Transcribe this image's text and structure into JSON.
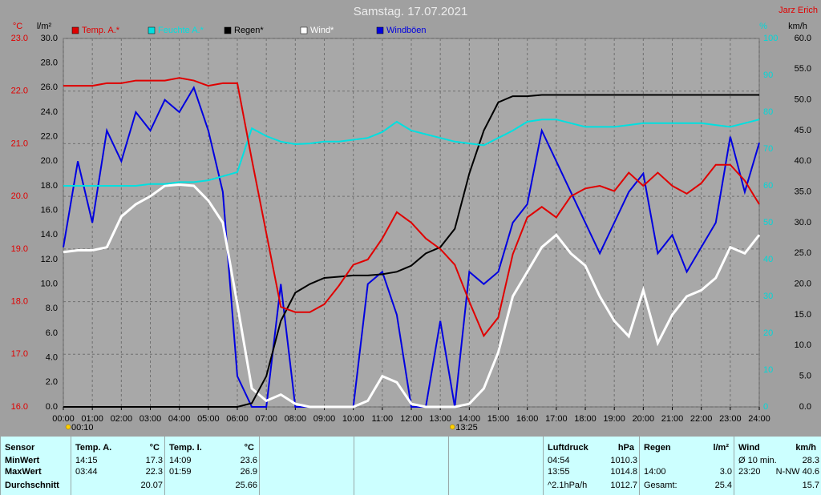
{
  "chart_data": {
    "type": "line",
    "title": "Samstag. 17.07.2021",
    "author": "Jarz Erich",
    "annotations": [
      "00:10",
      "13:25"
    ],
    "grid": true,
    "xlim": [
      0,
      24
    ],
    "xticks": [
      {
        "value": 0,
        "label": "00:00"
      },
      {
        "value": 1,
        "label": "01:00"
      },
      {
        "value": 2,
        "label": "02:00"
      },
      {
        "value": 3,
        "label": "03:00"
      },
      {
        "value": 4,
        "label": "04:00"
      },
      {
        "value": 5,
        "label": "05:00"
      },
      {
        "value": 6,
        "label": "06:00"
      },
      {
        "value": 7,
        "label": "07:00"
      },
      {
        "value": 8,
        "label": "08:00"
      },
      {
        "value": 9,
        "label": "09:00"
      },
      {
        "value": 10,
        "label": "10:00"
      },
      {
        "value": 11,
        "label": "11:00"
      },
      {
        "value": 12,
        "label": "12:00"
      },
      {
        "value": 13,
        "label": "13:00"
      },
      {
        "value": 14,
        "label": "14:00"
      },
      {
        "value": 15,
        "label": "15:00"
      },
      {
        "value": 16,
        "label": "16:00"
      },
      {
        "value": 17,
        "label": "17:00"
      },
      {
        "value": 18,
        "label": "18:00"
      },
      {
        "value": 19,
        "label": "19:00"
      },
      {
        "value": 20,
        "label": "20:00"
      },
      {
        "value": 21,
        "label": "21:00"
      },
      {
        "value": 22,
        "label": "22:00"
      },
      {
        "value": 23,
        "label": "23:00"
      },
      {
        "value": 24,
        "label": "24:00"
      }
    ],
    "axes": {
      "y": {
        "label": "°C",
        "color": "#e00000",
        "lim": [
          16,
          23
        ],
        "ticks": [
          {
            "value": 16,
            "label": "16.0"
          },
          {
            "value": 17,
            "label": "17.0"
          },
          {
            "value": 18,
            "label": "18.0"
          },
          {
            "value": 19,
            "label": "19.0"
          },
          {
            "value": 20,
            "label": "20.0"
          },
          {
            "value": 21,
            "label": "21.0"
          },
          {
            "value": 22,
            "label": "22.0"
          },
          {
            "value": 23,
            "label": "23.0"
          }
        ]
      },
      "y2": {
        "label": "l/m²",
        "color": "#000000",
        "lim": [
          0,
          30
        ],
        "ticks": [
          {
            "value": 0,
            "label": "0.0"
          },
          {
            "value": 2,
            "label": "2.0"
          },
          {
            "value": 4,
            "label": "4.0"
          },
          {
            "value": 6,
            "label": "6.0"
          },
          {
            "value": 8,
            "label": "8.0"
          },
          {
            "value": 10,
            "label": "10.0"
          },
          {
            "value": 12,
            "label": "12.0"
          },
          {
            "value": 14,
            "label": "14.0"
          },
          {
            "value": 16,
            "label": "16.0"
          },
          {
            "value": 18,
            "label": "18.0"
          },
          {
            "value": 20,
            "label": "20.0"
          },
          {
            "value": 22,
            "label": "22.0"
          },
          {
            "value": 24,
            "label": "24.0"
          },
          {
            "value": 26,
            "label": "26.0"
          },
          {
            "value": 28,
            "label": "28.0"
          },
          {
            "value": 30,
            "label": "30.0"
          }
        ]
      },
      "y3": {
        "label": "%",
        "color": "#00d8d8",
        "lim": [
          0,
          100
        ],
        "ticks": [
          0,
          10,
          20,
          30,
          40,
          50,
          60,
          70,
          80,
          90,
          100
        ]
      },
      "y4": {
        "label": "km/h",
        "color": "#000000",
        "lim": [
          0,
          60
        ],
        "ticks": [
          {
            "value": 0,
            "label": "0.0"
          },
          {
            "value": 5,
            "label": "5.0"
          },
          {
            "value": 10,
            "label": "10.0"
          },
          {
            "value": 15,
            "label": "15.0"
          },
          {
            "value": 20,
            "label": "20.0"
          },
          {
            "value": 25,
            "label": "25.0"
          },
          {
            "value": 30,
            "label": "30.0"
          },
          {
            "value": 35,
            "label": "35.0"
          },
          {
            "value": 40,
            "label": "40.0"
          },
          {
            "value": 45,
            "label": "45.0"
          },
          {
            "value": 50,
            "label": "50.0"
          },
          {
            "value": 55,
            "label": "55.0"
          },
          {
            "value": 60,
            "label": "60.0"
          }
        ]
      }
    },
    "x": [
      0,
      0.5,
      1,
      1.5,
      2,
      2.5,
      3,
      3.5,
      4,
      4.5,
      5,
      5.5,
      6,
      6.5,
      7,
      7.5,
      8,
      8.5,
      9,
      9.5,
      10,
      10.5,
      11,
      11.5,
      12,
      12.5,
      13,
      13.5,
      14,
      14.5,
      15,
      15.5,
      16,
      16.5,
      17,
      17.5,
      18,
      18.5,
      19,
      19.5,
      20,
      20.5,
      21,
      21.5,
      22,
      22.5,
      23,
      23.5,
      24
    ],
    "series": [
      {
        "name": "Temp. A.*",
        "color": "#e00000",
        "axis": "y",
        "values": [
          22.1,
          22.1,
          22.1,
          22.15,
          22.15,
          22.2,
          22.2,
          22.2,
          22.25,
          22.2,
          22.1,
          22.15,
          22.15,
          20.7,
          19.3,
          17.9,
          17.8,
          17.8,
          17.95,
          18.3,
          18.7,
          18.8,
          19.2,
          19.7,
          19.5,
          19.2,
          19.0,
          18.7,
          18.0,
          17.35,
          17.7,
          18.9,
          19.6,
          19.8,
          19.6,
          20.0,
          20.15,
          20.2,
          20.1,
          20.45,
          20.2,
          20.45,
          20.2,
          20.05,
          20.25,
          20.6,
          20.6,
          20.3,
          19.85
        ]
      },
      {
        "name": "Feuchte A.*",
        "color": "#00e0e0",
        "axis": "y3",
        "values": [
          60,
          60,
          60,
          60,
          60,
          60,
          60.5,
          60.5,
          61,
          61,
          61.5,
          62.6,
          63.7,
          75.6,
          73.5,
          72,
          71.3,
          71.5,
          72,
          72,
          72.5,
          73,
          74.6,
          77.4,
          75,
          74,
          73,
          72,
          71.5,
          71,
          73,
          75,
          77.4,
          78,
          78,
          77,
          76,
          76,
          76,
          76.5,
          77,
          77,
          77,
          77,
          77,
          76.5,
          76,
          77,
          78
        ]
      },
      {
        "name": "Regen*",
        "color": "#000000",
        "axis": "y2",
        "values": [
          0,
          0,
          0,
          0,
          0,
          0,
          0,
          0,
          0,
          0,
          0,
          0,
          0,
          0.3,
          2.5,
          7,
          9.3,
          10,
          10.5,
          10.6,
          10.7,
          10.7,
          10.8,
          11,
          11.5,
          12.5,
          13,
          14.5,
          19,
          22.5,
          24.8,
          25.3,
          25.3,
          25.4,
          25.4,
          25.4,
          25.4,
          25.4,
          25.4,
          25.4,
          25.4,
          25.4,
          25.4,
          25.4,
          25.4,
          25.4,
          25.4,
          25.4,
          25.4
        ]
      },
      {
        "name": "Wind*",
        "color": "#ffffff",
        "axis": "y4",
        "values": [
          25.2,
          25.5,
          25.5,
          26,
          31,
          33,
          34.3,
          36,
          36.2,
          36,
          33.6,
          30,
          16.7,
          3,
          1,
          2,
          0.5,
          0,
          0,
          0,
          0,
          1,
          5,
          4,
          0.5,
          0,
          0,
          0,
          0.5,
          3,
          8.9,
          18,
          22,
          26,
          28,
          25,
          23,
          18,
          14,
          11.5,
          19,
          10.4,
          15,
          18,
          19,
          21,
          26,
          25,
          28
        ]
      },
      {
        "name": "Windböen",
        "color": "#0000e0",
        "axis": "y4",
        "values": [
          26,
          40,
          30,
          45,
          40,
          48,
          45,
          50,
          48,
          52,
          45,
          35,
          5,
          0,
          0,
          20,
          0,
          0,
          0,
          0,
          0,
          20,
          22,
          15,
          0,
          0,
          14,
          0,
          22,
          20,
          22,
          30,
          33,
          45,
          40,
          35,
          30,
          25,
          30,
          35,
          38,
          25,
          28,
          22,
          26,
          30,
          44,
          35,
          43
        ]
      }
    ]
  },
  "table": {
    "labels": [
      "Sensor",
      "MinWert",
      "MaxWert",
      "Durchschnitt"
    ],
    "panels": [
      {
        "title": "Temp. A.",
        "unit": "°C",
        "rows": [
          [
            "14:15",
            "17.3"
          ],
          [
            "03:44",
            "22.3"
          ],
          [
            "20.07"
          ]
        ]
      },
      {
        "title": "Temp. I.",
        "unit": "°C",
        "rows": [
          [
            "14:09",
            "23.6"
          ],
          [
            "01:59",
            "26.9"
          ],
          [
            "25.66"
          ]
        ]
      },
      {
        "title": "Luftdruck",
        "unit": "hPa",
        "rows": [
          [
            "04:54",
            "1010.3"
          ],
          [
            "13:55",
            "1014.8"
          ],
          [
            "^2.1hPa/h",
            "1012.7"
          ]
        ]
      },
      {
        "title": "Regen",
        "unit": "l/m²",
        "rows": [
          null,
          [
            "14:00",
            "3.0"
          ],
          [
            "Gesamt:",
            "25.4"
          ]
        ]
      },
      {
        "title": "Wind",
        "unit": "km/h",
        "rows": [
          [
            "Ø 10 min.",
            "28.3"
          ],
          [
            "23:20",
            "N-NW 40.6"
          ],
          [
            "15.7"
          ]
        ]
      }
    ]
  }
}
